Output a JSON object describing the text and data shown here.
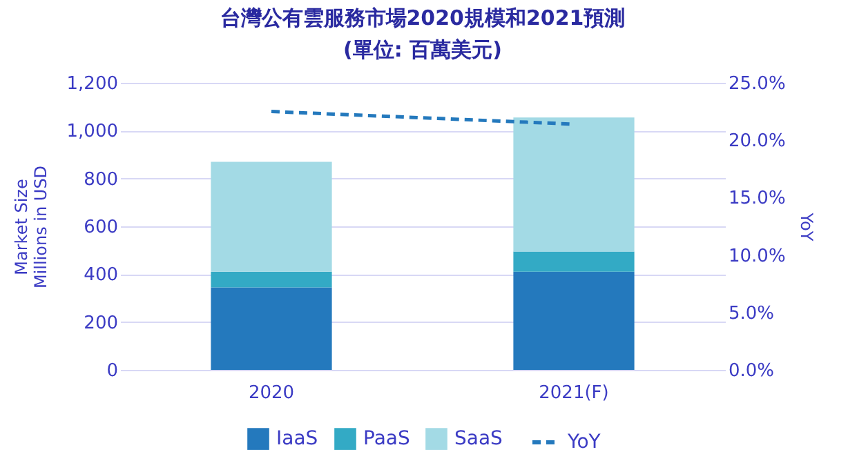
{
  "chart_data": {
    "type": "bar",
    "title": "台灣公有雲服務市場2020規模和2021預測",
    "subtitle": "(單位: 百萬美元)",
    "ylabel": "Market Size\nMillions in USD",
    "y2label": "YoY",
    "categories": [
      "2020",
      "2021(F)"
    ],
    "stacked": true,
    "series": [
      {
        "name": "IaaS",
        "color": "#2479bd",
        "values": [
          345,
          410
        ]
      },
      {
        "name": "PaaS",
        "color": "#33aac5",
        "values": [
          65,
          85
        ]
      },
      {
        "name": "SaaS",
        "color": "#a3dae5",
        "values": [
          460,
          560
        ]
      },
      {
        "name": "YoY",
        "type": "line",
        "axis": "y2",
        "color": "#2479bd",
        "line_style": "dashed",
        "marker": "none",
        "values": [
          22.5,
          21.4
        ]
      }
    ],
    "ylim": [
      0,
      1200
    ],
    "yticks": [
      0,
      200,
      400,
      600,
      800,
      {
        "value": 1000,
        "label": "1,000"
      },
      {
        "value": 1200,
        "label": "1,200"
      }
    ],
    "y2lim": [
      0,
      25
    ],
    "y2ticks": [
      {
        "value": 0,
        "label": "0.0%"
      },
      {
        "value": 5,
        "label": "5.0%"
      },
      {
        "value": 10,
        "label": "10.0%"
      },
      {
        "value": 15,
        "label": "15.0%"
      },
      {
        "value": 20,
        "label": "20.0%"
      },
      {
        "value": 25,
        "label": "25.0%"
      }
    ],
    "grid": "y",
    "legend": "bottom"
  }
}
